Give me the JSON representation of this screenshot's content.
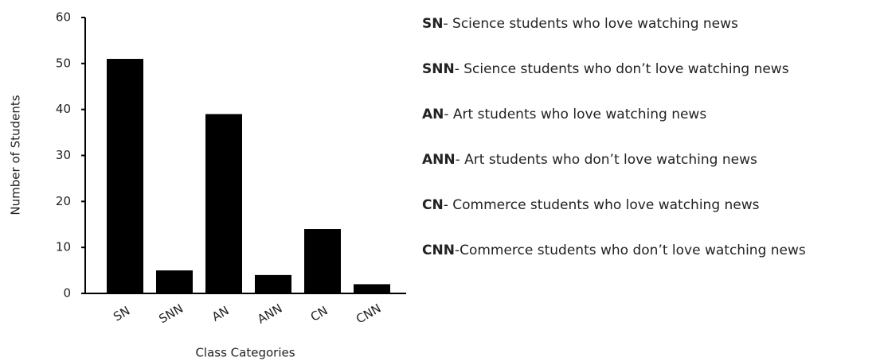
{
  "chart_data": {
    "type": "bar",
    "x_label": "Class Categories",
    "y_label": "Number of Students",
    "categories": [
      "SN",
      "SNN",
      "AN",
      "ANN",
      "CN",
      "CNN"
    ],
    "values": [
      51,
      5,
      39,
      4,
      14,
      2
    ],
    "color": "#000000",
    "ylim": [
      0,
      60
    ],
    "yticks": [
      0,
      10,
      20,
      30,
      40,
      50,
      60
    ],
    "grid": false,
    "annotations": [
      {
        "abbr": "SN",
        "text": "- Science students who love watching news"
      },
      {
        "abbr": "SNN",
        "text": "- Science students who don’t love watching news"
      },
      {
        "abbr": "AN",
        "text": "- Art students who love watching news"
      },
      {
        "abbr": "ANN",
        "text": "- Art students who don’t love watching news"
      },
      {
        "abbr": "CN",
        "text": "- Commerce students who love watching news"
      },
      {
        "abbr": "CNN",
        "text": "-Commerce students who don’t love watching news"
      }
    ]
  }
}
